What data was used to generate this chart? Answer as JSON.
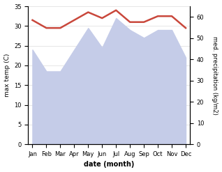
{
  "months": [
    "Jan",
    "Feb",
    "Mar",
    "Apr",
    "May",
    "Jun",
    "Jul",
    "Aug",
    "Sep",
    "Oct",
    "Nov",
    "Dec"
  ],
  "max_temp": [
    31.5,
    29.5,
    29.5,
    31.5,
    33.5,
    32.0,
    34.0,
    31.0,
    31.0,
    32.5,
    32.5,
    29.5
  ],
  "precipitation": [
    24.0,
    18.5,
    18.5,
    24.0,
    29.5,
    24.5,
    32.0,
    29.0,
    27.0,
    29.0,
    29.0,
    22.0
  ],
  "precip_right_ticks": [
    0,
    10,
    20,
    30,
    40,
    50,
    60
  ],
  "precip_right_labels": [
    "0",
    "10",
    "20",
    "30",
    "40",
    "50",
    "60"
  ],
  "temp_color": "#c9473b",
  "precip_fill_color": "#c5cce8",
  "precip_edge_color": "#c5cce8",
  "background_color": "#ffffff",
  "xlabel": "date (month)",
  "ylabel_left": "max temp (C)",
  "ylabel_right": "med. precipitation (kg/m2)",
  "ylim_left": [
    0,
    35
  ],
  "ylim_right": [
    0,
    65
  ],
  "yticks_left": [
    0,
    5,
    10,
    15,
    20,
    25,
    30,
    35
  ],
  "temp_linewidth": 1.8,
  "figsize": [
    3.18,
    2.47
  ],
  "dpi": 100
}
